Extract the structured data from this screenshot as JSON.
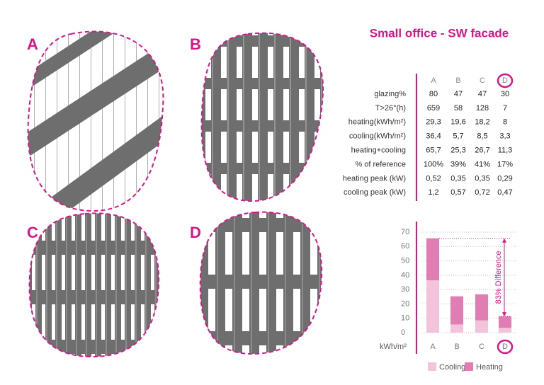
{
  "title": "Small office - SW facade",
  "panels": [
    {
      "label": "A"
    },
    {
      "label": "B"
    },
    {
      "label": "C"
    },
    {
      "label": "D"
    }
  ],
  "table": {
    "header": [
      "A",
      "B",
      "C",
      "D"
    ],
    "rows": [
      [
        "glazing%",
        "80",
        "47",
        "47",
        "30"
      ],
      [
        "T>26°(h)",
        "659",
        "58",
        "128",
        "7"
      ],
      [
        "heating(kWh/m²)",
        "29,3",
        "19,6",
        "18,2",
        "8"
      ],
      [
        "cooling(kWh/m²)",
        "36,4",
        "5,7",
        "8,5",
        "3,3"
      ],
      [
        "heating+cooling",
        "65,7",
        "25,3",
        "26,7",
        "11,3"
      ],
      [
        "% of reference",
        "100%",
        "39%",
        "41%",
        "17%"
      ],
      [
        "heating peak (kW)",
        "0,52",
        "0,35",
        "0,35",
        "0,29"
      ],
      [
        "cooling peak (kW)",
        "1,2",
        "0,57",
        "0,72",
        "0,47"
      ]
    ]
  },
  "chart_data": {
    "type": "bar",
    "stacked": true,
    "categories": [
      "A",
      "B",
      "C",
      "D"
    ],
    "series": [
      {
        "name": "Cooling",
        "color": "#f3c3db",
        "values": [
          36.4,
          5.7,
          8.5,
          3.3
        ]
      },
      {
        "name": "Heating",
        "color": "#e27db4",
        "values": [
          29.3,
          19.6,
          18.2,
          8
        ]
      }
    ],
    "ylim": [
      0,
      70
    ],
    "yticks": [
      0,
      10,
      20,
      30,
      40,
      50,
      60,
      70
    ],
    "y_unit": "kWh/m²",
    "annotation": "83% Difference",
    "grid": true
  }
}
